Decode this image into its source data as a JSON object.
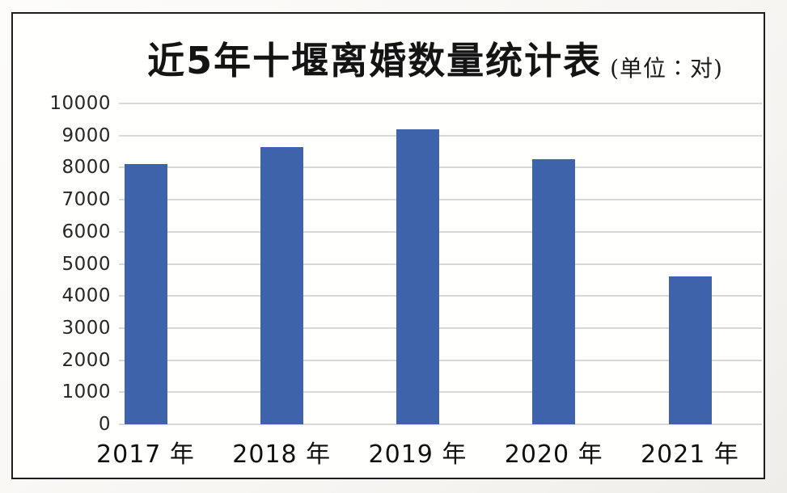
{
  "title": {
    "main": "近5年十堰离婚数量统计表",
    "unit": "(单位∶对)"
  },
  "chart_data": {
    "type": "bar",
    "title": "近5年十堰离婚数量统计表",
    "subtitle_unit": "(单位∶对)",
    "categories": [
      "2017 年",
      "2018 年",
      "2019 年",
      "2020 年",
      "2021 年"
    ],
    "values": [
      8100,
      8650,
      9200,
      8250,
      4600
    ],
    "xlabel": "",
    "ylabel": "",
    "ylim": [
      0,
      10000
    ],
    "ytick_step": 1000,
    "yticks": [
      0,
      1000,
      2000,
      3000,
      4000,
      5000,
      6000,
      7000,
      8000,
      9000,
      10000
    ],
    "grid": true,
    "legend": false,
    "bar_color": "#3e63aa",
    "gridline_color": "#d8d8d8",
    "frame_border_color": "#1d1d1d",
    "background_color": "#fffffe"
  }
}
